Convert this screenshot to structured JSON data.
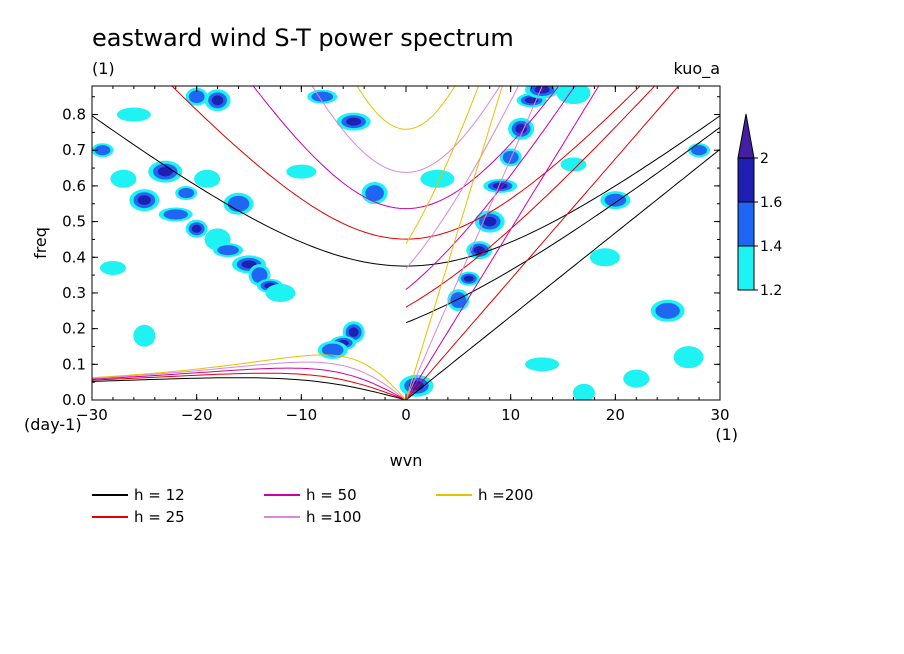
{
  "header": {
    "title": "eastward wind S-T power spectrum",
    "subtitle_left": "(1)",
    "subtitle_right": "kuo_a"
  },
  "colors": {
    "c_1_2": "#1ff2f2",
    "c_1_4": "#1f66f2",
    "c_1_6": "#1f1fb2",
    "c_2": "#451fa3",
    "h12": "#000000",
    "h25": "#e00000",
    "h50": "#cc00aa",
    "h100": "#d888d8",
    "h200": "#e8c000"
  },
  "chart_data": {
    "type": "heatmap",
    "title": "eastward wind S-T power spectrum",
    "xlabel": "wvn",
    "ylabel": "freq",
    "x_unit_label": "(1)",
    "y_unit_label": "(day-1)",
    "xlim": [
      -30,
      30
    ],
    "ylim": [
      0,
      0.88
    ],
    "x_ticks": [
      -30,
      -20,
      -10,
      0,
      10,
      20,
      30
    ],
    "x_tick_labels": [
      "−30",
      "−20",
      "−10",
      "0",
      "10",
      "20",
      "30"
    ],
    "y_ticks": [
      0.0,
      0.1,
      0.2,
      0.3,
      0.4,
      0.5,
      0.6,
      0.7,
      0.8
    ],
    "y_tick_labels": [
      "0.0",
      "0.1",
      "0.2",
      "0.3",
      "0.4",
      "0.5",
      "0.6",
      "0.7",
      "0.8"
    ],
    "colorbar": {
      "levels": [
        1.2,
        1.4,
        1.6,
        2
      ],
      "labels": [
        "1.2",
        "1.4",
        "1.6",
        "2"
      ],
      "colors": [
        "#1ff2f2",
        "#1f66f2",
        "#1f1fb2",
        "#451fa3"
      ]
    },
    "dispersion_curves": [
      {
        "name": "h = 12",
        "h": 12,
        "color": "#000000"
      },
      {
        "name": "h = 25",
        "h": 25,
        "color": "#e00000"
      },
      {
        "name": "h = 50",
        "h": 50,
        "color": "#cc00aa"
      },
      {
        "name": "h =100",
        "h": 100,
        "color": "#d888d8"
      },
      {
        "name": "h =200",
        "h": 200,
        "color": "#e8c000"
      }
    ],
    "blobs": [
      {
        "x": -29,
        "y": 0.7,
        "level": 1.4
      },
      {
        "x": -27,
        "y": 0.62,
        "level": 1.2
      },
      {
        "x": -25,
        "y": 0.56,
        "level": 1.6
      },
      {
        "x": -22,
        "y": 0.52,
        "level": 1.4
      },
      {
        "x": -20,
        "y": 0.48,
        "level": 1.6
      },
      {
        "x": -18,
        "y": 0.45,
        "level": 1.2
      },
      {
        "x": -17,
        "y": 0.42,
        "level": 1.4
      },
      {
        "x": -15,
        "y": 0.38,
        "level": 1.6
      },
      {
        "x": -14,
        "y": 0.35,
        "level": 1.4
      },
      {
        "x": -13,
        "y": 0.32,
        "level": 1.6
      },
      {
        "x": -12,
        "y": 0.3,
        "level": 1.2
      },
      {
        "x": -23,
        "y": 0.64,
        "level": 1.6
      },
      {
        "x": -21,
        "y": 0.58,
        "level": 1.4
      },
      {
        "x": -19,
        "y": 0.62,
        "level": 1.2
      },
      {
        "x": -16,
        "y": 0.55,
        "level": 1.4
      },
      {
        "x": -26,
        "y": 0.8,
        "level": 1.2
      },
      {
        "x": -20,
        "y": 0.85,
        "level": 1.4
      },
      {
        "x": -18,
        "y": 0.84,
        "level": 1.6
      },
      {
        "x": -8,
        "y": 0.85,
        "level": 1.4
      },
      {
        "x": -5,
        "y": 0.78,
        "level": 1.6
      },
      {
        "x": -5,
        "y": 0.19,
        "level": 1.6
      },
      {
        "x": -6,
        "y": 0.16,
        "level": 1.6
      },
      {
        "x": -7,
        "y": 0.14,
        "level": 1.4
      },
      {
        "x": 1,
        "y": 0.04,
        "level": 2
      },
      {
        "x": 6,
        "y": 0.34,
        "level": 1.6
      },
      {
        "x": 7,
        "y": 0.42,
        "level": 1.6
      },
      {
        "x": 8,
        "y": 0.5,
        "level": 1.6
      },
      {
        "x": 9,
        "y": 0.6,
        "level": 1.6
      },
      {
        "x": 10,
        "y": 0.68,
        "level": 1.4
      },
      {
        "x": 11,
        "y": 0.76,
        "level": 1.6
      },
      {
        "x": 12,
        "y": 0.84,
        "level": 2
      },
      {
        "x": 13,
        "y": 0.87,
        "level": 2
      },
      {
        "x": 5,
        "y": 0.28,
        "level": 1.4
      },
      {
        "x": 16,
        "y": 0.66,
        "level": 1.2
      },
      {
        "x": 20,
        "y": 0.56,
        "level": 1.4
      },
      {
        "x": 25,
        "y": 0.25,
        "level": 1.4
      },
      {
        "x": 28,
        "y": 0.7,
        "level": 1.4
      },
      {
        "x": 22,
        "y": 0.06,
        "level": 1.2
      },
      {
        "x": 27,
        "y": 0.12,
        "level": 1.2
      },
      {
        "x": 13,
        "y": 0.1,
        "level": 1.2
      },
      {
        "x": 17,
        "y": 0.02,
        "level": 1.2
      },
      {
        "x": -3,
        "y": 0.58,
        "level": 1.4
      },
      {
        "x": -10,
        "y": 0.64,
        "level": 1.2
      },
      {
        "x": 3,
        "y": 0.62,
        "level": 1.2
      },
      {
        "x": -25,
        "y": 0.18,
        "level": 1.2
      },
      {
        "x": -28,
        "y": 0.37,
        "level": 1.2
      },
      {
        "x": 19,
        "y": 0.4,
        "level": 1.2
      },
      {
        "x": 16,
        "y": 0.86,
        "level": 1.2
      }
    ]
  },
  "legend": {
    "items": [
      {
        "label": "h = 12",
        "color": "#000000"
      },
      {
        "label": "h = 25",
        "color": "#e00000"
      },
      {
        "label": "h = 50",
        "color": "#cc00aa"
      },
      {
        "label": "h =100",
        "color": "#d888d8"
      },
      {
        "label": "h =200",
        "color": "#e8c000"
      }
    ]
  }
}
